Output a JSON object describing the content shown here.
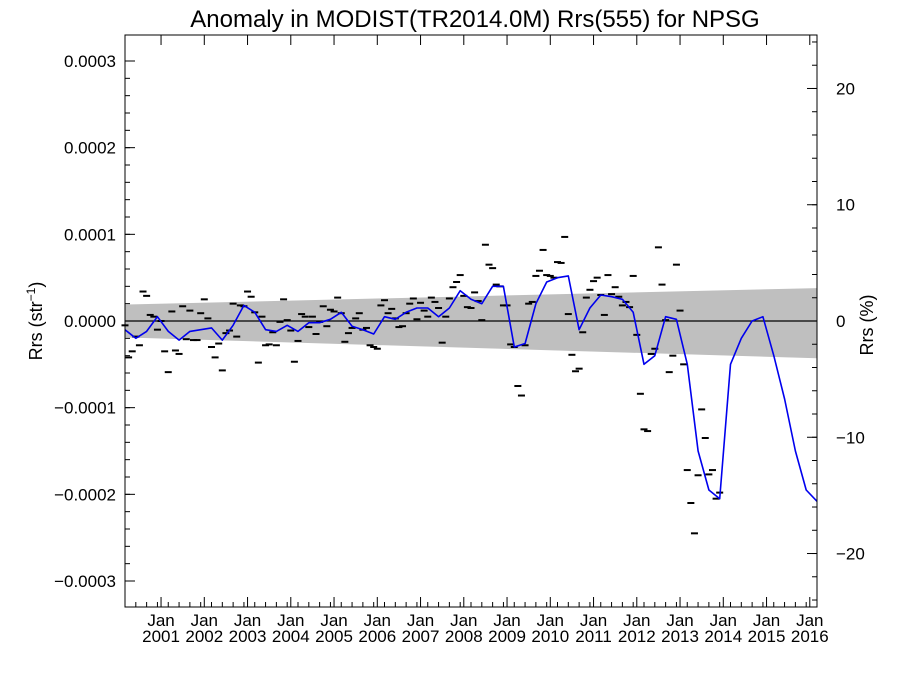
{
  "chart_data": {
    "type": "line",
    "title": "Anomaly in MODIST(TR2014.0M) Rrs(555) for NPSG",
    "ylabel_left": "Rrs (str",
    "ylabel_left_sup": "−1",
    "ylabel_left_close": ")",
    "ylabel_right": "Rrs (%)",
    "x_range": [
      "2000-03",
      "2016-03"
    ],
    "y_range_left": [
      -0.00033,
      0.00033
    ],
    "y_range_right": [
      -24.6,
      24.6
    ],
    "y_ticks_left": [
      {
        "value": 0.0003,
        "label": "0.0003"
      },
      {
        "value": 0.0002,
        "label": "0.0002"
      },
      {
        "value": 0.0001,
        "label": "0.0001"
      },
      {
        "value": 0.0,
        "label": "0.0000"
      },
      {
        "value": -0.0001,
        "label": "−0.0001"
      },
      {
        "value": -0.0002,
        "label": "−0.0002"
      },
      {
        "value": -0.0003,
        "label": "−0.0003"
      }
    ],
    "y_ticks_right": [
      {
        "value": 20,
        "label": "20"
      },
      {
        "value": 10,
        "label": "10"
      },
      {
        "value": 0,
        "label": "0"
      },
      {
        "value": -10,
        "label": "−10"
      },
      {
        "value": -20,
        "label": "−20"
      }
    ],
    "x_ticks": [
      {
        "date": "2001-01",
        "month": "Jan",
        "year": "2001"
      },
      {
        "date": "2002-01",
        "month": "Jan",
        "year": "2002"
      },
      {
        "date": "2003-01",
        "month": "Jan",
        "year": "2003"
      },
      {
        "date": "2004-01",
        "month": "Jan",
        "year": "2004"
      },
      {
        "date": "2005-01",
        "month": "Jan",
        "year": "2005"
      },
      {
        "date": "2006-01",
        "month": "Jan",
        "year": "2006"
      },
      {
        "date": "2007-01",
        "month": "Jan",
        "year": "2007"
      },
      {
        "date": "2008-01",
        "month": "Jan",
        "year": "2008"
      },
      {
        "date": "2009-01",
        "month": "Jan",
        "year": "2009"
      },
      {
        "date": "2010-01",
        "month": "Jan",
        "year": "2010"
      },
      {
        "date": "2011-01",
        "month": "Jan",
        "year": "2011"
      },
      {
        "date": "2012-01",
        "month": "Jan",
        "year": "2012"
      },
      {
        "date": "2013-01",
        "month": "Jan",
        "year": "2013"
      },
      {
        "date": "2014-01",
        "month": "Jan",
        "year": "2014"
      },
      {
        "date": "2015-01",
        "month": "Jan",
        "year": "2015"
      },
      {
        "date": "2016-01",
        "month": "Jan",
        "year": "2016"
      }
    ],
    "band": {
      "color": "#bfbfbf",
      "upper": [
        [
          "2000-03",
          1.9e-05
        ],
        [
          "2016-03",
          3.8e-05
        ]
      ],
      "lower": [
        [
          "2000-03",
          -1.9e-05
        ],
        [
          "2016-03",
          -4.3e-05
        ]
      ]
    },
    "zero_line_color": "#000000",
    "series": [
      {
        "style": "dash",
        "color": "#000000",
        "points": [
          [
            "2000-03",
            -5e-06
          ],
          [
            "2000-04",
            -4.2e-05
          ],
          [
            "2000-05",
            -3.5e-05
          ],
          [
            "2000-06",
            -1.8e-05
          ],
          [
            "2000-07",
            -2.8e-05
          ],
          [
            "2000-08",
            3.4e-05
          ],
          [
            "2000-09",
            2.9e-05
          ],
          [
            "2000-10",
            7e-06
          ],
          [
            "2000-11",
            5e-06
          ],
          [
            "2000-12",
            -1e-05
          ],
          [
            "2001-01",
            0.0
          ],
          [
            "2001-02",
            -3.5e-05
          ],
          [
            "2001-03",
            -5.9e-05
          ],
          [
            "2001-04",
            1.1e-05
          ],
          [
            "2001-05",
            -3.4e-05
          ],
          [
            "2001-06",
            -3.8e-05
          ],
          [
            "2001-07",
            1.7e-05
          ],
          [
            "2001-08",
            -2.1e-05
          ],
          [
            "2001-09",
            1.2e-05
          ],
          [
            "2001-10",
            -2.2e-05
          ],
          [
            "2001-11",
            -2.2e-05
          ],
          [
            "2001-12",
            9e-06
          ],
          [
            "2002-01",
            2.5e-05
          ],
          [
            "2002-02",
            3e-06
          ],
          [
            "2002-03",
            -3e-05
          ],
          [
            "2002-04",
            -4.2e-05
          ],
          [
            "2002-05",
            -2.6e-05
          ],
          [
            "2002-06",
            -5.7e-05
          ],
          [
            "2002-07",
            -1.4e-05
          ],
          [
            "2002-08",
            -1.1e-05
          ],
          [
            "2002-09",
            2e-05
          ],
          [
            "2002-10",
            -1.8e-05
          ],
          [
            "2002-11",
            1.8e-05
          ],
          [
            "2002-12",
            1.7e-05
          ],
          [
            "2003-01",
            3.4e-05
          ],
          [
            "2003-02",
            2.8e-05
          ],
          [
            "2003-03",
            1e-05
          ],
          [
            "2003-04",
            -4.8e-05
          ],
          [
            "2003-05",
            5e-06
          ],
          [
            "2003-06",
            -2.8e-05
          ],
          [
            "2003-07",
            -2.7e-05
          ],
          [
            "2003-08",
            -1.3e-05
          ],
          [
            "2003-09",
            -2.8e-05
          ],
          [
            "2003-10",
            -1e-06
          ],
          [
            "2003-11",
            2.5e-05
          ],
          [
            "2003-12",
            1e-06
          ],
          [
            "2004-01",
            -1.1e-05
          ],
          [
            "2004-02",
            -4.7e-05
          ],
          [
            "2004-03",
            -2.3e-05
          ],
          [
            "2004-04",
            8e-06
          ],
          [
            "2004-05",
            5e-06
          ],
          [
            "2004-06",
            -7e-06
          ],
          [
            "2004-07",
            5e-06
          ],
          [
            "2004-08",
            -1.5e-05
          ],
          [
            "2004-09",
            -1e-06
          ],
          [
            "2004-10",
            1.7e-05
          ],
          [
            "2004-11",
            -6e-06
          ],
          [
            "2004-12",
            1.3e-05
          ],
          [
            "2005-01",
            1.1e-05
          ],
          [
            "2005-02",
            2.7e-05
          ],
          [
            "2005-03",
            9e-06
          ],
          [
            "2005-04",
            -2.4e-05
          ],
          [
            "2005-05",
            -1.4e-05
          ],
          [
            "2005-06",
            -8e-06
          ],
          [
            "2005-07",
            3e-06
          ],
          [
            "2005-08",
            9e-06
          ],
          [
            "2005-09",
            -1e-05
          ],
          [
            "2005-10",
            -8e-06
          ],
          [
            "2005-11",
            -2.8e-05
          ],
          [
            "2005-12",
            -3e-05
          ],
          [
            "2006-01",
            -3.2e-05
          ],
          [
            "2006-02",
            1.8e-05
          ],
          [
            "2006-03",
            2.4e-05
          ],
          [
            "2006-04",
            9e-06
          ],
          [
            "2006-05",
            1.4e-05
          ],
          [
            "2006-06",
            3e-06
          ],
          [
            "2006-07",
            -7e-06
          ],
          [
            "2006-08",
            -6e-06
          ],
          [
            "2006-09",
            9e-06
          ],
          [
            "2006-10",
            2e-05
          ],
          [
            "2006-11",
            2.6e-05
          ],
          [
            "2006-12",
            2e-06
          ],
          [
            "2007-01",
            2.1e-05
          ],
          [
            "2007-02",
            1.2e-05
          ],
          [
            "2007-03",
            5e-06
          ],
          [
            "2007-04",
            2.7e-05
          ],
          [
            "2007-05",
            2.2e-05
          ],
          [
            "2007-06",
            1.5e-05
          ],
          [
            "2007-07",
            -2.5e-05
          ],
          [
            "2007-08",
            5e-06
          ],
          [
            "2007-09",
            2.6e-05
          ],
          [
            "2007-10",
            3.9e-05
          ],
          [
            "2007-11",
            4.5e-05
          ],
          [
            "2007-12",
            5.3e-05
          ],
          [
            "2008-01",
            2.9e-05
          ],
          [
            "2008-02",
            1.6e-05
          ],
          [
            "2008-03",
            1.5e-05
          ],
          [
            "2008-04",
            3.3e-05
          ],
          [
            "2008-05",
            2.3e-05
          ],
          [
            "2008-06",
            1e-06
          ],
          [
            "2008-07",
            8.8e-05
          ],
          [
            "2008-08",
            6.5e-05
          ],
          [
            "2008-09",
            6.1e-05
          ],
          [
            "2008-10",
            4.2e-05
          ],
          [
            "2008-11",
            4e-05
          ],
          [
            "2008-12",
            1.8e-05
          ],
          [
            "2009-01",
            1.8e-05
          ],
          [
            "2009-02",
            -2.7e-05
          ],
          [
            "2009-03",
            -3e-05
          ],
          [
            "2009-04",
            -7.5e-05
          ],
          [
            "2009-05",
            -8.6e-05
          ],
          [
            "2009-06",
            -2.8e-05
          ],
          [
            "2009-07",
            2e-05
          ],
          [
            "2009-08",
            2.2e-05
          ],
          [
            "2009-09",
            5.2e-05
          ],
          [
            "2009-10",
            5.8e-05
          ],
          [
            "2009-11",
            8.2e-05
          ],
          [
            "2009-12",
            5.3e-05
          ],
          [
            "2010-01",
            5.2e-05
          ],
          [
            "2010-02",
            5e-05
          ],
          [
            "2010-03",
            6.8e-05
          ],
          [
            "2010-04",
            6.7e-05
          ],
          [
            "2010-05",
            9.7e-05
          ],
          [
            "2010-06",
            8e-06
          ],
          [
            "2010-07",
            -3.9e-05
          ],
          [
            "2010-08",
            -5.8e-05
          ],
          [
            "2010-09",
            -5.5e-05
          ],
          [
            "2010-10",
            -1.3e-05
          ],
          [
            "2010-11",
            2.7e-05
          ],
          [
            "2010-12",
            3.6e-05
          ],
          [
            "2011-01",
            4.6e-05
          ],
          [
            "2011-02",
            5e-05
          ],
          [
            "2011-03",
            3e-05
          ],
          [
            "2011-04",
            7e-06
          ],
          [
            "2011-05",
            5.3e-05
          ],
          [
            "2011-06",
            3.1e-05
          ],
          [
            "2011-07",
            3.9e-05
          ],
          [
            "2011-08",
            2.8e-05
          ],
          [
            "2011-09",
            1.8e-05
          ],
          [
            "2011-10",
            2.2e-05
          ],
          [
            "2011-11",
            1.6e-05
          ],
          [
            "2011-12",
            5.2e-05
          ],
          [
            "2012-01",
            -1.6e-05
          ],
          [
            "2012-02",
            -8.4e-05
          ],
          [
            "2012-03",
            -0.000125
          ],
          [
            "2012-04",
            -0.000127
          ],
          [
            "2012-05",
            -3.8e-05
          ],
          [
            "2012-06",
            -3.2e-05
          ],
          [
            "2012-07",
            8.5e-05
          ],
          [
            "2012-08",
            4.2e-05
          ],
          [
            "2012-09",
            1e-06
          ],
          [
            "2012-10",
            -5.9e-05
          ],
          [
            "2012-11",
            -4e-05
          ],
          [
            "2012-12",
            6.5e-05
          ],
          [
            "2013-01",
            1.2e-05
          ],
          [
            "2013-02",
            -5e-05
          ],
          [
            "2013-03",
            -0.000172
          ],
          [
            "2013-04",
            -0.00021
          ],
          [
            "2013-05",
            -0.000245
          ],
          [
            "2013-06",
            -0.000178
          ],
          [
            "2013-07",
            -0.000102
          ],
          [
            "2013-08",
            -0.000135
          ],
          [
            "2013-09",
            -0.000177
          ],
          [
            "2013-10",
            -0.000172
          ],
          [
            "2013-11",
            -0.000205
          ],
          [
            "2013-12",
            -0.000198
          ]
        ]
      },
      {
        "style": "line",
        "color": "#0000ee",
        "points": [
          [
            "2000-03",
            -1e-05
          ],
          [
            "2000-06",
            -2e-05
          ],
          [
            "2000-09",
            -1.2e-05
          ],
          [
            "2000-12",
            5e-06
          ],
          [
            "2001-03",
            -1.2e-05
          ],
          [
            "2001-06",
            -2.2e-05
          ],
          [
            "2001-09",
            -1.2e-05
          ],
          [
            "2001-12",
            -1e-05
          ],
          [
            "2002-03",
            -8e-06
          ],
          [
            "2002-06",
            -2.2e-05
          ],
          [
            "2002-09",
            -5e-06
          ],
          [
            "2002-12",
            1.8e-05
          ],
          [
            "2003-03",
            1e-05
          ],
          [
            "2003-06",
            -1e-05
          ],
          [
            "2003-09",
            -1.2e-05
          ],
          [
            "2003-12",
            -5e-06
          ],
          [
            "2004-03",
            -1.2e-05
          ],
          [
            "2004-06",
            -2e-06
          ],
          [
            "2004-09",
            -2e-06
          ],
          [
            "2004-12",
            2e-06
          ],
          [
            "2005-03",
            1e-05
          ],
          [
            "2005-06",
            -6e-06
          ],
          [
            "2005-09",
            -1e-05
          ],
          [
            "2005-12",
            -1.5e-05
          ],
          [
            "2006-03",
            5e-06
          ],
          [
            "2006-06",
            2e-06
          ],
          [
            "2006-09",
            1e-05
          ],
          [
            "2006-12",
            1.5e-05
          ],
          [
            "2007-03",
            1.5e-05
          ],
          [
            "2007-06",
            5e-06
          ],
          [
            "2007-09",
            1.5e-05
          ],
          [
            "2007-12",
            3.5e-05
          ],
          [
            "2008-03",
            2.5e-05
          ],
          [
            "2008-06",
            2e-05
          ],
          [
            "2008-09",
            4e-05
          ],
          [
            "2008-12",
            4e-05
          ],
          [
            "2009-03",
            -3e-05
          ],
          [
            "2009-06",
            -2.6e-05
          ],
          [
            "2009-09",
            2e-05
          ],
          [
            "2009-12",
            4.5e-05
          ],
          [
            "2010-03",
            5e-05
          ],
          [
            "2010-06",
            5.2e-05
          ],
          [
            "2010-09",
            -1e-05
          ],
          [
            "2010-12",
            1.5e-05
          ],
          [
            "2011-03",
            3e-05
          ],
          [
            "2011-06",
            2.8e-05
          ],
          [
            "2011-09",
            2.5e-05
          ],
          [
            "2011-12",
            1e-05
          ],
          [
            "2012-03",
            -5e-05
          ],
          [
            "2012-06",
            -4e-05
          ],
          [
            "2012-09",
            5e-06
          ],
          [
            "2012-12",
            2e-06
          ],
          [
            "2013-03",
            -5e-05
          ],
          [
            "2013-06",
            -0.00015
          ],
          [
            "2013-09",
            -0.000195
          ],
          [
            "2013-12",
            -0.000205
          ],
          [
            "2014-03",
            -5e-05
          ],
          [
            "2014-06",
            -2e-05
          ],
          [
            "2014-09",
            0.0
          ],
          [
            "2014-12",
            5e-06
          ],
          [
            "2015-03",
            -4e-05
          ],
          [
            "2015-06",
            -9e-05
          ],
          [
            "2015-09",
            -0.00015
          ],
          [
            "2015-12",
            -0.000195
          ],
          [
            "2016-03",
            -0.000208
          ]
        ]
      }
    ]
  }
}
